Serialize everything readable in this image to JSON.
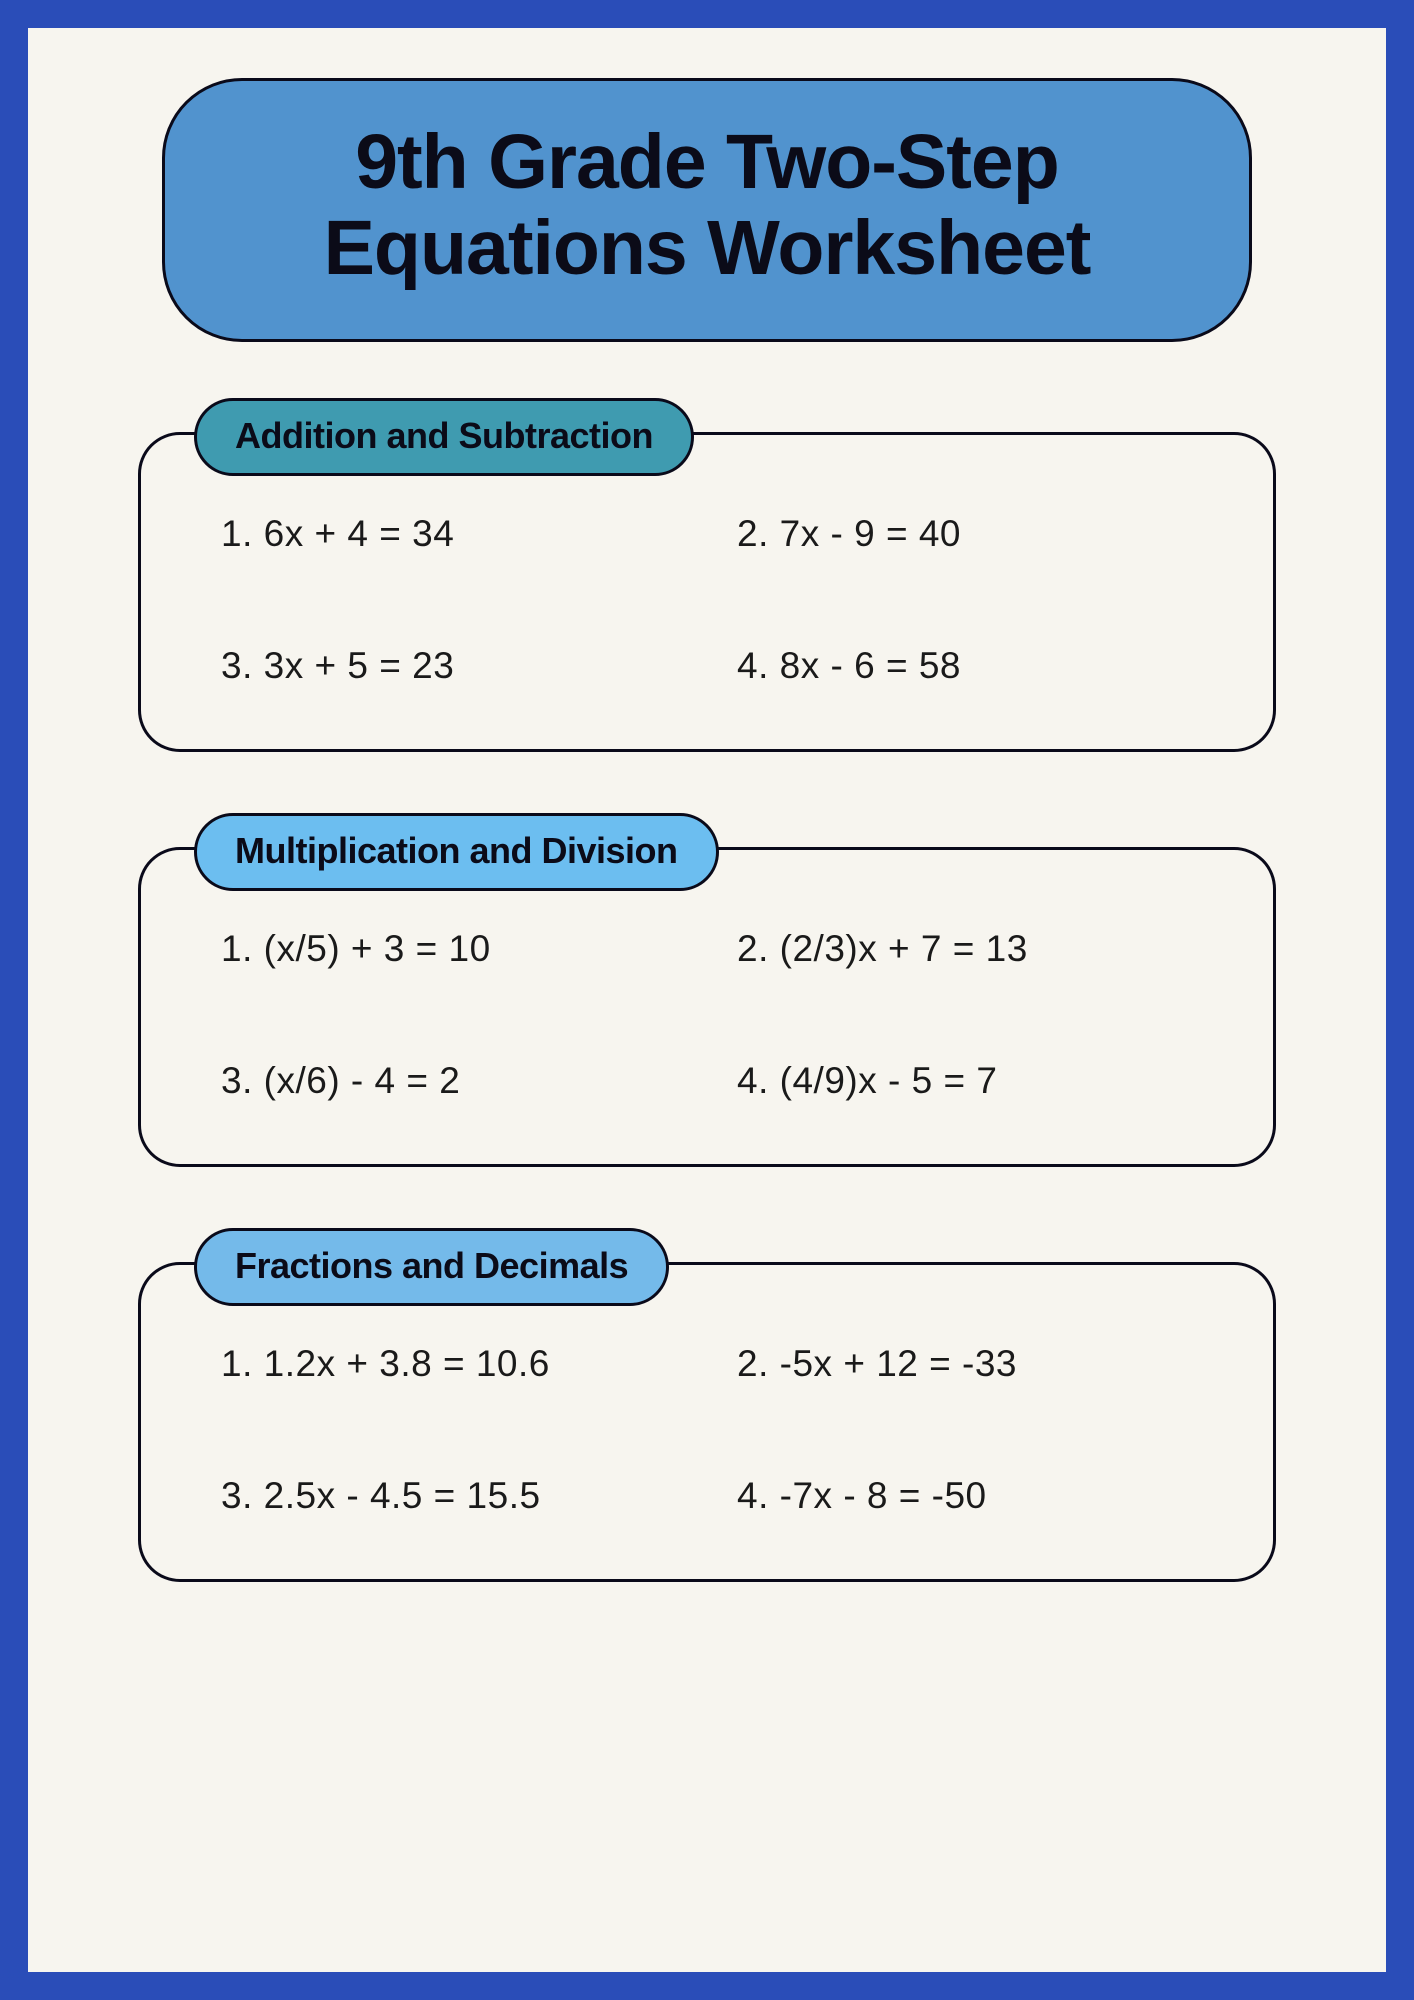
{
  "page": {
    "border_color": "#2a4db8",
    "background_color": "#f7f5ef"
  },
  "title": {
    "text": "9th Grade Two-Step Equations Worksheet",
    "pill_color": "#5193ce",
    "text_color": "#0b0b18",
    "border_color": "#0a0a1a",
    "fontsize": 77,
    "border_radius": 80
  },
  "sections": [
    {
      "label": "Addition and Subtraction",
      "label_bg": "#3f9bb0",
      "problems": [
        "1. 6x + 4 = 34",
        "2. 7x - 9 = 40",
        "3. 3x + 5 = 23",
        "4. 8x - 6 = 58"
      ]
    },
    {
      "label": "Multiplication and Division",
      "label_bg": "#6cbef0",
      "problems": [
        "1. (x/5) + 3 = 10",
        "2. (2/3)x + 7 = 13",
        "3. (x/6) - 4 = 2",
        "4. (4/9)x - 5 = 7"
      ]
    },
    {
      "label": "Fractions and Decimals",
      "label_bg": "#74baea",
      "problems": [
        "1. 1.2x + 3.8 = 10.6",
        "2. -5x + 12 = -33",
        "3. 2.5x - 4.5 = 15.5",
        "4. -7x - 8 = -50"
      ]
    }
  ],
  "styling": {
    "section_border_color": "#0a0a1a",
    "section_border_radius": 42,
    "label_fontsize": 36,
    "problem_fontsize": 37,
    "problem_color": "#1a1a1a"
  }
}
